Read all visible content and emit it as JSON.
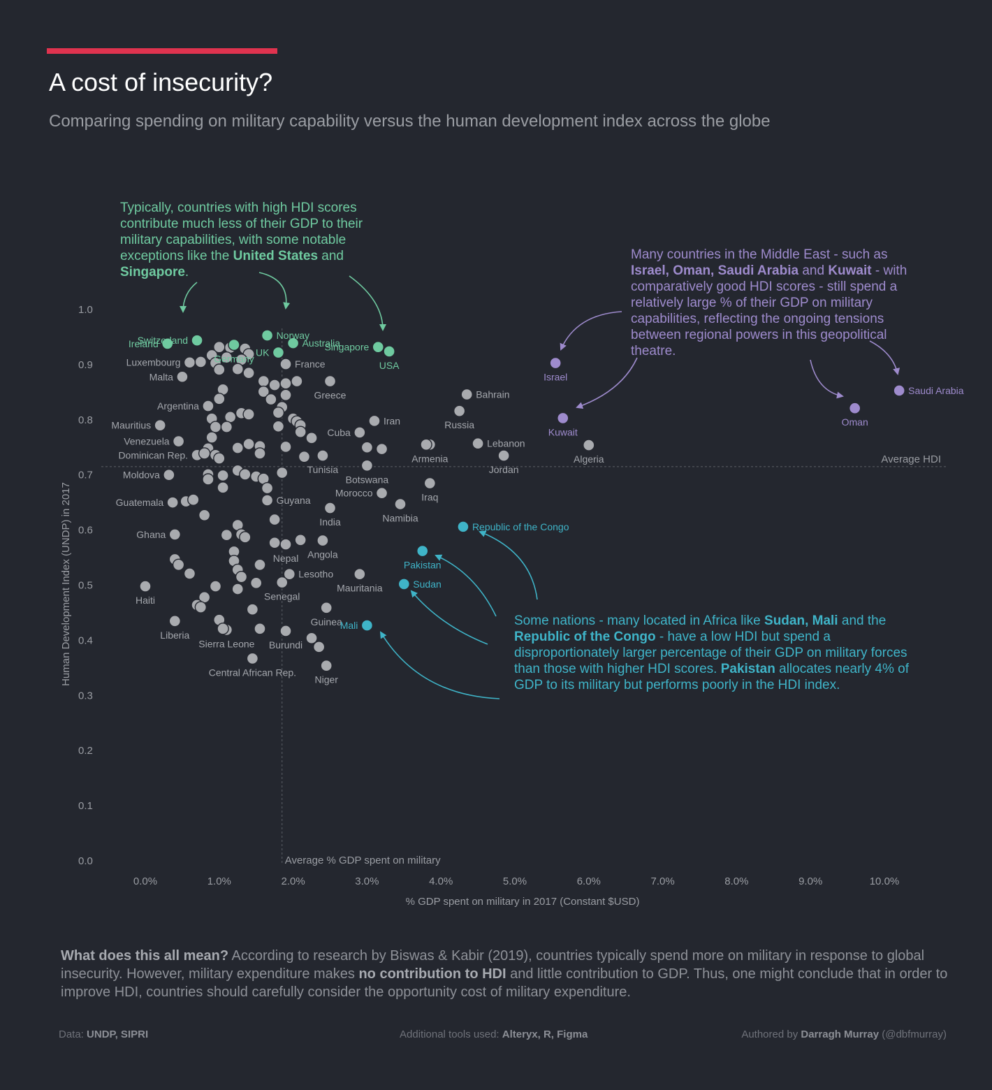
{
  "header": {
    "title": "A cost of insecurity?",
    "subtitle": "Comparing spending on military capability versus the human development index across the globe",
    "accent_color": "#e0334f"
  },
  "annotations": {
    "green": {
      "p1": "Typically, countries with high HDI scores contribute much less of their GDP to their military capabilities, with some notable exceptions like the ",
      "b1": "United States",
      "p2": " and ",
      "b2": "Singapore",
      "p3": "."
    },
    "purple": {
      "p1": "Many countries in the Middle East - such as ",
      "b1": "Israel, Oman, Saudi Arabia",
      "p2": " and ",
      "b2": "Kuwait",
      "p3": " - with comparatively good HDI scores - still spend a relatively large % of their GDP on military capabilities, reflecting the ongoing tensions between regional powers in this geopolitical theatre."
    },
    "teal": {
      "p1": "Some nations - many located in Africa like ",
      "b1": "Sudan, Mali",
      "p2": " and the ",
      "b2": "Republic of the Congo",
      "p3": " - have a low HDI but spend a disproportionately larger percentage of their GDP on military forces than those with higher HDI scores. ",
      "b3": "Pakistan",
      "p4": " allocates nearly 4% of GDP to its military but performs poorly in the HDI index."
    }
  },
  "footer": {
    "bold": "What does this all mean?",
    "p1": " According to research by Biswas & Kabir (2019), countries typically spend more on military in response to global insecurity. However, military expenditure makes ",
    "bold2": "no contribution to HDI",
    "p2": " and little contribution to GDP. Thus, one might conclude that in order to improve HDI, countries should carefully consider the opportunity cost of military expenditure."
  },
  "credits": {
    "data_label": "Data: ",
    "data_value": "UNDP, SIPRI",
    "tools_label": "Additional tools used: ",
    "tools_value": "Alteryx, R, Figma",
    "author_label": "Authored by ",
    "author_value": "Darragh Murray",
    "author_handle": " (@dbfmurray)"
  },
  "chart_data": {
    "type": "scatter",
    "xlabel": "% GDP spent on military in 2017 (Constant $USD)",
    "ylabel": "Human Development Index (UNDP) in 2017",
    "xlim": [
      0,
      10
    ],
    "ylim": [
      0,
      1.0
    ],
    "x_ticks": [
      "0.0%",
      "1.0%",
      "2.0%",
      "3.0%",
      "4.0%",
      "5.0%",
      "6.0%",
      "7.0%",
      "8.0%",
      "9.0%",
      "10.0%"
    ],
    "y_ticks": [
      "0.0",
      "0.1",
      "0.2",
      "0.3",
      "0.4",
      "0.5",
      "0.6",
      "0.7",
      "0.8",
      "0.9",
      "1.0"
    ],
    "grid": false,
    "reference_lines": {
      "average_hdi": {
        "value": 0.715,
        "label": "Average HDI"
      },
      "average_gdp": {
        "value": 1.85,
        "label": "Average % GDP spent on military"
      }
    },
    "colors": {
      "default": "#a9abaf",
      "green": "#6fcaa0",
      "purple": "#9e8bcd",
      "teal": "#3fb4c8"
    },
    "points": [
      {
        "name": "Ireland",
        "x": 0.3,
        "y": 0.938,
        "group": "green",
        "label": true,
        "anchor": "end"
      },
      {
        "name": "Switzerland",
        "x": 0.7,
        "y": 0.944,
        "group": "green",
        "label": true,
        "anchor": "end"
      },
      {
        "name": "Germany",
        "x": 1.2,
        "y": 0.936,
        "group": "green",
        "label": true,
        "anchor": "middle"
      },
      {
        "name": "Norway",
        "x": 1.65,
        "y": 0.953,
        "group": "green",
        "label": true,
        "anchor": "start"
      },
      {
        "name": "UK",
        "x": 1.8,
        "y": 0.922,
        "group": "green",
        "label": true,
        "anchor": "end"
      },
      {
        "name": "Australia",
        "x": 2.0,
        "y": 0.939,
        "group": "green",
        "label": true,
        "anchor": "start"
      },
      {
        "name": "Singapore",
        "x": 3.15,
        "y": 0.932,
        "group": "green",
        "label": true,
        "anchor": "end"
      },
      {
        "name": "USA",
        "x": 3.3,
        "y": 0.924,
        "group": "green",
        "label": true,
        "anchor": "middle"
      },
      {
        "name": "Israel",
        "x": 5.55,
        "y": 0.903,
        "group": "purple",
        "label": true,
        "anchor": "middle"
      },
      {
        "name": "Kuwait",
        "x": 5.65,
        "y": 0.803,
        "group": "purple",
        "label": true,
        "anchor": "middle"
      },
      {
        "name": "Oman",
        "x": 9.6,
        "y": 0.821,
        "group": "purple",
        "label": true,
        "anchor": "middle"
      },
      {
        "name": "Saudi Arabia",
        "x": 10.2,
        "y": 0.853,
        "group": "purple",
        "label": true,
        "anchor": "start"
      },
      {
        "name": "Republic of the Congo",
        "x": 4.3,
        "y": 0.606,
        "group": "teal",
        "label": true,
        "anchor": "start"
      },
      {
        "name": "Pakistan",
        "x": 3.75,
        "y": 0.562,
        "group": "teal",
        "label": true,
        "anchor": "middle"
      },
      {
        "name": "Sudan",
        "x": 3.5,
        "y": 0.502,
        "group": "teal",
        "label": true,
        "anchor": "start"
      },
      {
        "name": "Mali",
        "x": 3.0,
        "y": 0.427,
        "group": "teal",
        "label": true,
        "anchor": "end"
      },
      {
        "name": "Luxembourg",
        "x": 0.6,
        "y": 0.904,
        "group": "default",
        "label": true,
        "anchor": "end"
      },
      {
        "name": "Malta",
        "x": 0.5,
        "y": 0.878,
        "group": "default",
        "label": true,
        "anchor": "end"
      },
      {
        "name": "Argentina",
        "x": 0.85,
        "y": 0.825,
        "group": "default",
        "label": true,
        "anchor": "end"
      },
      {
        "name": "Mauritius",
        "x": 0.2,
        "y": 0.79,
        "group": "default",
        "label": true,
        "anchor": "end"
      },
      {
        "name": "Venezuela",
        "x": 0.45,
        "y": 0.761,
        "group": "default",
        "label": true,
        "anchor": "end"
      },
      {
        "name": "Dominican Rep.",
        "x": 0.7,
        "y": 0.736,
        "group": "default",
        "label": true,
        "anchor": "end"
      },
      {
        "name": "Moldova",
        "x": 0.32,
        "y": 0.7,
        "group": "default",
        "label": true,
        "anchor": "end"
      },
      {
        "name": "Guatemala",
        "x": 0.37,
        "y": 0.65,
        "group": "default",
        "label": true,
        "anchor": "end"
      },
      {
        "name": "Ghana",
        "x": 0.4,
        "y": 0.592,
        "group": "default",
        "label": true,
        "anchor": "end"
      },
      {
        "name": "Haiti",
        "x": 0.0,
        "y": 0.498,
        "group": "default",
        "label": true,
        "anchor": "middle"
      },
      {
        "name": "Liberia",
        "x": 0.4,
        "y": 0.435,
        "group": "default",
        "label": true,
        "anchor": "middle"
      },
      {
        "name": "France",
        "x": 1.9,
        "y": 0.901,
        "group": "default",
        "label": true,
        "anchor": "start"
      },
      {
        "name": "Greece",
        "x": 2.5,
        "y": 0.87,
        "group": "default",
        "label": true,
        "anchor": "middle"
      },
      {
        "name": "Iran",
        "x": 3.1,
        "y": 0.798,
        "group": "default",
        "label": true,
        "anchor": "start"
      },
      {
        "name": "Cuba",
        "x": 2.9,
        "y": 0.777,
        "group": "default",
        "label": true,
        "anchor": "end"
      },
      {
        "name": "Bahrain",
        "x": 4.35,
        "y": 0.846,
        "group": "default",
        "label": true,
        "anchor": "start"
      },
      {
        "name": "Russia",
        "x": 4.25,
        "y": 0.816,
        "group": "default",
        "label": true,
        "anchor": "middle"
      },
      {
        "name": "Lebanon",
        "x": 4.5,
        "y": 0.757,
        "group": "default",
        "label": true,
        "anchor": "start"
      },
      {
        "name": "Armenia",
        "x": 3.85,
        "y": 0.755,
        "group": "default",
        "label": true,
        "anchor": "middle"
      },
      {
        "name": "Jordan",
        "x": 4.85,
        "y": 0.735,
        "group": "default",
        "label": true,
        "anchor": "middle"
      },
      {
        "name": "Algeria",
        "x": 6.0,
        "y": 0.754,
        "group": "default",
        "label": true,
        "anchor": "middle"
      },
      {
        "name": "Tunisia",
        "x": 2.4,
        "y": 0.735,
        "group": "default",
        "label": true,
        "anchor": "middle"
      },
      {
        "name": "Botswana",
        "x": 3.0,
        "y": 0.717,
        "group": "default",
        "label": true,
        "anchor": "middle"
      },
      {
        "name": "Iraq",
        "x": 3.85,
        "y": 0.685,
        "group": "default",
        "label": true,
        "anchor": "middle"
      },
      {
        "name": "Morocco",
        "x": 3.2,
        "y": 0.667,
        "group": "default",
        "label": true,
        "anchor": "end"
      },
      {
        "name": "Namibia",
        "x": 3.45,
        "y": 0.647,
        "group": "default",
        "label": true,
        "anchor": "middle"
      },
      {
        "name": "Guyana",
        "x": 1.65,
        "y": 0.654,
        "group": "default",
        "label": true,
        "anchor": "start"
      },
      {
        "name": "India",
        "x": 2.5,
        "y": 0.64,
        "group": "default",
        "label": true,
        "anchor": "middle"
      },
      {
        "name": "Nepal",
        "x": 1.9,
        "y": 0.574,
        "group": "default",
        "label": true,
        "anchor": "middle"
      },
      {
        "name": "Angola",
        "x": 2.4,
        "y": 0.581,
        "group": "default",
        "label": true,
        "anchor": "middle"
      },
      {
        "name": "Lesotho",
        "x": 1.95,
        "y": 0.52,
        "group": "default",
        "label": true,
        "anchor": "start"
      },
      {
        "name": "Mauritania",
        "x": 2.9,
        "y": 0.52,
        "group": "default",
        "label": true,
        "anchor": "middle"
      },
      {
        "name": "Senegal",
        "x": 1.85,
        "y": 0.505,
        "group": "default",
        "label": true,
        "anchor": "middle"
      },
      {
        "name": "Guinea",
        "x": 2.45,
        "y": 0.459,
        "group": "default",
        "label": true,
        "anchor": "middle"
      },
      {
        "name": "Sierra Leone",
        "x": 1.1,
        "y": 0.419,
        "group": "default",
        "label": true,
        "anchor": "middle"
      },
      {
        "name": "Burundi",
        "x": 1.9,
        "y": 0.417,
        "group": "default",
        "label": true,
        "anchor": "middle"
      },
      {
        "name": "Central African Rep.",
        "x": 1.45,
        "y": 0.367,
        "group": "default",
        "label": true,
        "anchor": "middle"
      },
      {
        "name": "Niger",
        "x": 2.45,
        "y": 0.354,
        "group": "default",
        "label": true,
        "anchor": "middle"
      },
      {
        "x": 1.0,
        "y": 0.932
      },
      {
        "x": 1.15,
        "y": 0.931
      },
      {
        "x": 1.35,
        "y": 0.929
      },
      {
        "x": 1.4,
        "y": 0.919
      },
      {
        "x": 0.9,
        "y": 0.917
      },
      {
        "x": 1.1,
        "y": 0.913
      },
      {
        "x": 1.3,
        "y": 0.909
      },
      {
        "x": 0.75,
        "y": 0.905
      },
      {
        "x": 0.95,
        "y": 0.903
      },
      {
        "x": 1.0,
        "y": 0.891
      },
      {
        "x": 1.25,
        "y": 0.892
      },
      {
        "x": 1.4,
        "y": 0.885
      },
      {
        "x": 1.6,
        "y": 0.87
      },
      {
        "x": 1.75,
        "y": 0.863
      },
      {
        "x": 1.9,
        "y": 0.866
      },
      {
        "x": 2.05,
        "y": 0.87
      },
      {
        "x": 1.6,
        "y": 0.851
      },
      {
        "x": 1.7,
        "y": 0.837
      },
      {
        "x": 1.9,
        "y": 0.845
      },
      {
        "x": 1.05,
        "y": 0.855
      },
      {
        "x": 1.0,
        "y": 0.838
      },
      {
        "x": 1.85,
        "y": 0.823
      },
      {
        "x": 1.8,
        "y": 0.813
      },
      {
        "x": 1.3,
        "y": 0.812
      },
      {
        "x": 1.4,
        "y": 0.81
      },
      {
        "x": 1.15,
        "y": 0.805
      },
      {
        "x": 0.9,
        "y": 0.802
      },
      {
        "x": 2.0,
        "y": 0.802
      },
      {
        "x": 2.05,
        "y": 0.797
      },
      {
        "x": 2.1,
        "y": 0.79
      },
      {
        "x": 0.95,
        "y": 0.787
      },
      {
        "x": 1.1,
        "y": 0.787
      },
      {
        "x": 1.8,
        "y": 0.788
      },
      {
        "x": 2.1,
        "y": 0.778
      },
      {
        "x": 0.9,
        "y": 0.768
      },
      {
        "x": 2.25,
        "y": 0.767
      },
      {
        "x": 1.4,
        "y": 0.756
      },
      {
        "x": 1.55,
        "y": 0.752
      },
      {
        "x": 1.25,
        "y": 0.749
      },
      {
        "x": 1.9,
        "y": 0.751
      },
      {
        "x": 0.85,
        "y": 0.748
      },
      {
        "x": 1.55,
        "y": 0.739
      },
      {
        "x": 0.95,
        "y": 0.736
      },
      {
        "x": 2.15,
        "y": 0.733
      },
      {
        "x": 0.8,
        "y": 0.739
      },
      {
        "x": 1.0,
        "y": 0.73
      },
      {
        "x": 3.0,
        "y": 0.75
      },
      {
        "x": 3.2,
        "y": 0.747
      },
      {
        "x": 3.8,
        "y": 0.755
      },
      {
        "x": 1.25,
        "y": 0.708
      },
      {
        "x": 1.35,
        "y": 0.701
      },
      {
        "x": 1.5,
        "y": 0.697
      },
      {
        "x": 1.6,
        "y": 0.693
      },
      {
        "x": 1.85,
        "y": 0.704
      },
      {
        "x": 1.05,
        "y": 0.699
      },
      {
        "x": 0.85,
        "y": 0.701
      },
      {
        "x": 0.85,
        "y": 0.692
      },
      {
        "x": 1.65,
        "y": 0.676
      },
      {
        "x": 1.05,
        "y": 0.677
      },
      {
        "x": 0.55,
        "y": 0.652
      },
      {
        "x": 0.65,
        "y": 0.655
      },
      {
        "x": 0.8,
        "y": 0.627
      },
      {
        "x": 1.75,
        "y": 0.619
      },
      {
        "x": 1.25,
        "y": 0.609
      },
      {
        "x": 1.1,
        "y": 0.591
      },
      {
        "x": 1.3,
        "y": 0.592
      },
      {
        "x": 1.35,
        "y": 0.587
      },
      {
        "x": 1.2,
        "y": 0.561
      },
      {
        "x": 1.75,
        "y": 0.577
      },
      {
        "x": 2.1,
        "y": 0.582
      },
      {
        "x": 1.2,
        "y": 0.544
      },
      {
        "x": 1.55,
        "y": 0.537
      },
      {
        "x": 0.4,
        "y": 0.547
      },
      {
        "x": 0.45,
        "y": 0.537
      },
      {
        "x": 0.6,
        "y": 0.521
      },
      {
        "x": 1.25,
        "y": 0.528
      },
      {
        "x": 1.3,
        "y": 0.515
      },
      {
        "x": 1.5,
        "y": 0.504
      },
      {
        "x": 0.95,
        "y": 0.498
      },
      {
        "x": 1.25,
        "y": 0.493
      },
      {
        "x": 0.8,
        "y": 0.478
      },
      {
        "x": 0.7,
        "y": 0.464
      },
      {
        "x": 0.75,
        "y": 0.46
      },
      {
        "x": 1.45,
        "y": 0.456
      },
      {
        "x": 1.0,
        "y": 0.437
      },
      {
        "x": 1.05,
        "y": 0.421
      },
      {
        "x": 1.55,
        "y": 0.421
      },
      {
        "x": 2.25,
        "y": 0.404
      },
      {
        "x": 2.35,
        "y": 0.388
      }
    ]
  }
}
